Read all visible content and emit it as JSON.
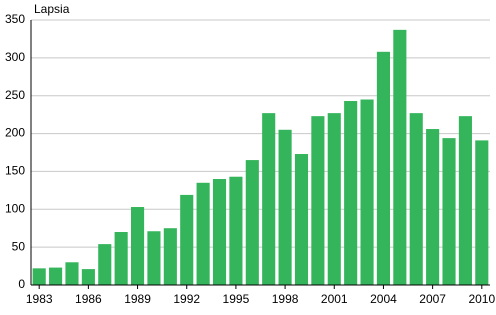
{
  "chart_data": {
    "type": "bar",
    "y_label": "Lapsia",
    "categories": [
      "1983",
      null,
      null,
      "1986",
      null,
      null,
      "1989",
      null,
      null,
      "1992",
      null,
      null,
      "1995",
      null,
      null,
      "1998",
      null,
      null,
      "2001",
      null,
      null,
      "2004",
      null,
      null,
      "2007",
      null,
      null,
      "2010"
    ],
    "values": [
      22,
      23,
      30,
      21,
      54,
      70,
      103,
      71,
      75,
      119,
      135,
      140,
      143,
      165,
      227,
      205,
      173,
      223,
      227,
      243,
      245,
      308,
      337,
      227,
      206,
      194,
      223,
      191
    ],
    "color": "#35b55b",
    "ylim": [
      0,
      350
    ],
    "yticks": [
      0,
      50,
      100,
      150,
      200,
      250,
      300,
      350
    ],
    "grid": true
  }
}
